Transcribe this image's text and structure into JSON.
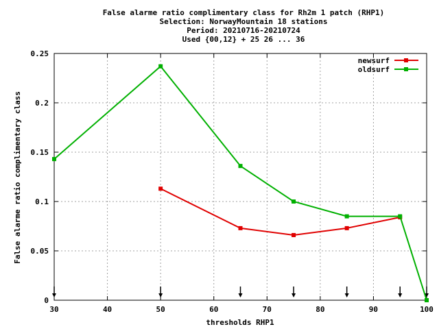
{
  "chart_data": {
    "type": "line",
    "title_lines": [
      "False alarme ratio complimentary class  for Rh2m 1 patch (RHP1)",
      "Selection: NorwayMountain     18 stations",
      "Period: 20210716-20210724",
      "Used {00,12} + 25 26 ... 36"
    ],
    "xlabel": "thresholds RHP1",
    "ylabel": "False alarme ratio complimentary class",
    "xlim": [
      30,
      100
    ],
    "ylim": [
      0,
      0.25
    ],
    "xticks": [
      30,
      40,
      50,
      60,
      70,
      80,
      90,
      100
    ],
    "xtick_labels": [
      "30",
      "40",
      "50",
      "60",
      "70",
      "80",
      "90",
      "100"
    ],
    "yticks": [
      0,
      0.05,
      0.1,
      0.15,
      0.2,
      0.25
    ],
    "ytick_labels": [
      "0",
      "0.05",
      "0.1",
      "0.15",
      "0.2",
      "0.25"
    ],
    "grid": true,
    "legend_position": "top-right",
    "arrow_markers_x": [
      30,
      50,
      65,
      75,
      85,
      95,
      100
    ],
    "series": [
      {
        "name": "newsurf",
        "color": "#e00000",
        "x": [
          50,
          65,
          75,
          85,
          95
        ],
        "y": [
          0.113,
          0.073,
          0.066,
          0.073,
          0.084
        ]
      },
      {
        "name": "oldsurf",
        "color": "#00b000",
        "x": [
          30,
          50,
          65,
          75,
          85,
          95,
          100
        ],
        "y": [
          0.143,
          0.237,
          0.136,
          0.1,
          0.085,
          0.085,
          0.0
        ]
      }
    ]
  }
}
